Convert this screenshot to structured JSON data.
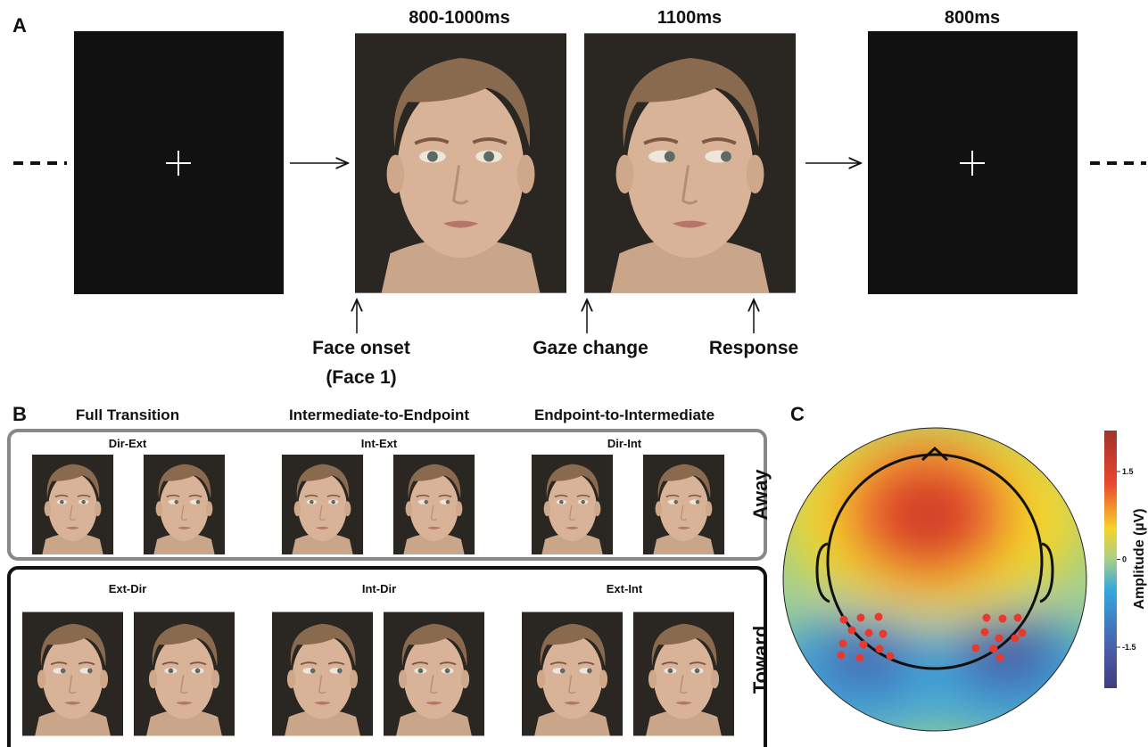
{
  "panel_a": {
    "label": "A",
    "durations": [
      "800-1000ms",
      "1100ms",
      "800ms"
    ],
    "events": [
      "Face onset",
      "(Face 1)",
      "Gaze change",
      "Response"
    ]
  },
  "panel_b": {
    "label": "B",
    "columns": [
      "Full Transition",
      "Intermediate-to-Endpoint",
      "Endpoint-to-Intermediate"
    ],
    "rows": [
      {
        "name": "Away",
        "conditions": [
          "Dir-Ext",
          "Int-Ext",
          "Dir-Int"
        ]
      },
      {
        "name": "Toward",
        "conditions": [
          "Ext-Dir",
          "Int-Dir",
          "Ext-Int"
        ]
      }
    ]
  },
  "panel_c": {
    "label": "C",
    "colorbar": {
      "label": "Amplitude (µV)",
      "range": [
        -2.2,
        2.2
      ],
      "ticks": [
        1.5,
        0,
        -1.5
      ]
    }
  }
}
